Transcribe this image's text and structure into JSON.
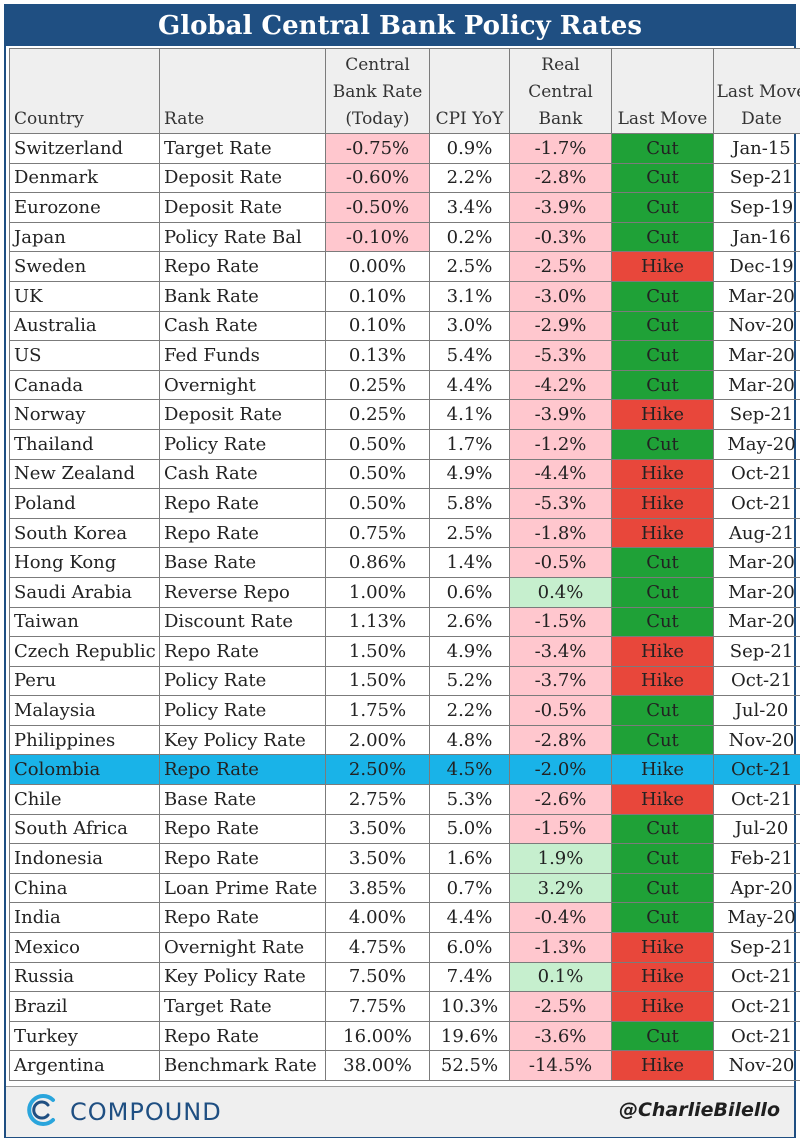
{
  "title": "Global Central Bank Policy Rates",
  "colors": {
    "header_blue": "#1f4f82",
    "negative_fill": "#ffc7ce",
    "positive_fill": "#c6efce",
    "cut_green": "#1fa137",
    "hike_red": "#e8473b",
    "highlight_blue": "#19b3e8"
  },
  "chart_data": {
    "type": "table",
    "columns": [
      "Country",
      "Rate",
      "Central Bank Rate (Today)",
      "CPI YoY",
      "Real Central Bank",
      "Last Move",
      "Last Move Date"
    ],
    "highlighted_row": "Colombia",
    "rows": [
      {
        "country": "Switzerland",
        "rate": "Target Rate",
        "cb_rate": "-0.75%",
        "cpi": "0.9%",
        "real": "-1.7%",
        "move": "Cut",
        "date": "Jan-15"
      },
      {
        "country": "Denmark",
        "rate": "Deposit Rate",
        "cb_rate": "-0.60%",
        "cpi": "2.2%",
        "real": "-2.8%",
        "move": "Cut",
        "date": "Sep-21"
      },
      {
        "country": "Eurozone",
        "rate": "Deposit Rate",
        "cb_rate": "-0.50%",
        "cpi": "3.4%",
        "real": "-3.9%",
        "move": "Cut",
        "date": "Sep-19"
      },
      {
        "country": "Japan",
        "rate": "Policy Rate Bal",
        "cb_rate": "-0.10%",
        "cpi": "0.2%",
        "real": "-0.3%",
        "move": "Cut",
        "date": "Jan-16"
      },
      {
        "country": "Sweden",
        "rate": "Repo Rate",
        "cb_rate": "0.00%",
        "cpi": "2.5%",
        "real": "-2.5%",
        "move": "Hike",
        "date": "Dec-19"
      },
      {
        "country": "UK",
        "rate": "Bank Rate",
        "cb_rate": "0.10%",
        "cpi": "3.1%",
        "real": "-3.0%",
        "move": "Cut",
        "date": "Mar-20"
      },
      {
        "country": "Australia",
        "rate": "Cash Rate",
        "cb_rate": "0.10%",
        "cpi": "3.0%",
        "real": "-2.9%",
        "move": "Cut",
        "date": "Nov-20"
      },
      {
        "country": "US",
        "rate": "Fed Funds",
        "cb_rate": "0.13%",
        "cpi": "5.4%",
        "real": "-5.3%",
        "move": "Cut",
        "date": "Mar-20"
      },
      {
        "country": "Canada",
        "rate": "Overnight",
        "cb_rate": "0.25%",
        "cpi": "4.4%",
        "real": "-4.2%",
        "move": "Cut",
        "date": "Mar-20"
      },
      {
        "country": "Norway",
        "rate": "Deposit Rate",
        "cb_rate": "0.25%",
        "cpi": "4.1%",
        "real": "-3.9%",
        "move": "Hike",
        "date": "Sep-21"
      },
      {
        "country": "Thailand",
        "rate": "Policy Rate",
        "cb_rate": "0.50%",
        "cpi": "1.7%",
        "real": "-1.2%",
        "move": "Cut",
        "date": "May-20"
      },
      {
        "country": "New Zealand",
        "rate": "Cash Rate",
        "cb_rate": "0.50%",
        "cpi": "4.9%",
        "real": "-4.4%",
        "move": "Hike",
        "date": "Oct-21"
      },
      {
        "country": "Poland",
        "rate": "Repo Rate",
        "cb_rate": "0.50%",
        "cpi": "5.8%",
        "real": "-5.3%",
        "move": "Hike",
        "date": "Oct-21"
      },
      {
        "country": "South Korea",
        "rate": "Repo Rate",
        "cb_rate": "0.75%",
        "cpi": "2.5%",
        "real": "-1.8%",
        "move": "Hike",
        "date": "Aug-21"
      },
      {
        "country": "Hong Kong",
        "rate": "Base Rate",
        "cb_rate": "0.86%",
        "cpi": "1.4%",
        "real": "-0.5%",
        "move": "Cut",
        "date": "Mar-20"
      },
      {
        "country": "Saudi Arabia",
        "rate": "Reverse Repo",
        "cb_rate": "1.00%",
        "cpi": "0.6%",
        "real": "0.4%",
        "move": "Cut",
        "date": "Mar-20"
      },
      {
        "country": "Taiwan",
        "rate": "Discount Rate",
        "cb_rate": "1.13%",
        "cpi": "2.6%",
        "real": "-1.5%",
        "move": "Cut",
        "date": "Mar-20"
      },
      {
        "country": "Czech Republic",
        "rate": "Repo Rate",
        "cb_rate": "1.50%",
        "cpi": "4.9%",
        "real": "-3.4%",
        "move": "Hike",
        "date": "Sep-21"
      },
      {
        "country": "Peru",
        "rate": "Policy Rate",
        "cb_rate": "1.50%",
        "cpi": "5.2%",
        "real": "-3.7%",
        "move": "Hike",
        "date": "Oct-21"
      },
      {
        "country": "Malaysia",
        "rate": "Policy Rate",
        "cb_rate": "1.75%",
        "cpi": "2.2%",
        "real": "-0.5%",
        "move": "Cut",
        "date": "Jul-20"
      },
      {
        "country": "Philippines",
        "rate": "Key Policy Rate",
        "cb_rate": "2.00%",
        "cpi": "4.8%",
        "real": "-2.8%",
        "move": "Cut",
        "date": "Nov-20"
      },
      {
        "country": "Colombia",
        "rate": "Repo Rate",
        "cb_rate": "2.50%",
        "cpi": "4.5%",
        "real": "-2.0%",
        "move": "Hike",
        "date": "Oct-21"
      },
      {
        "country": "Chile",
        "rate": "Base Rate",
        "cb_rate": "2.75%",
        "cpi": "5.3%",
        "real": "-2.6%",
        "move": "Hike",
        "date": "Oct-21"
      },
      {
        "country": "South Africa",
        "rate": "Repo Rate",
        "cb_rate": "3.50%",
        "cpi": "5.0%",
        "real": "-1.5%",
        "move": "Cut",
        "date": "Jul-20"
      },
      {
        "country": "Indonesia",
        "rate": "Repo Rate",
        "cb_rate": "3.50%",
        "cpi": "1.6%",
        "real": "1.9%",
        "move": "Cut",
        "date": "Feb-21"
      },
      {
        "country": "China",
        "rate": "Loan Prime Rate",
        "cb_rate": "3.85%",
        "cpi": "0.7%",
        "real": "3.2%",
        "move": "Cut",
        "date": "Apr-20"
      },
      {
        "country": "India",
        "rate": "Repo Rate",
        "cb_rate": "4.00%",
        "cpi": "4.4%",
        "real": "-0.4%",
        "move": "Cut",
        "date": "May-20"
      },
      {
        "country": "Mexico",
        "rate": "Overnight Rate",
        "cb_rate": "4.75%",
        "cpi": "6.0%",
        "real": "-1.3%",
        "move": "Hike",
        "date": "Sep-21"
      },
      {
        "country": "Russia",
        "rate": "Key Policy Rate",
        "cb_rate": "7.50%",
        "cpi": "7.4%",
        "real": "0.1%",
        "move": "Hike",
        "date": "Oct-21"
      },
      {
        "country": "Brazil",
        "rate": "Target Rate",
        "cb_rate": "7.75%",
        "cpi": "10.3%",
        "real": "-2.5%",
        "move": "Hike",
        "date": "Oct-21"
      },
      {
        "country": "Turkey",
        "rate": "Repo Rate",
        "cb_rate": "16.00%",
        "cpi": "19.6%",
        "real": "-3.6%",
        "move": "Cut",
        "date": "Oct-21"
      },
      {
        "country": "Argentina",
        "rate": "Benchmark Rate",
        "cb_rate": "38.00%",
        "cpi": "52.5%",
        "real": "-14.5%",
        "move": "Hike",
        "date": "Nov-20"
      }
    ]
  },
  "footer": {
    "logo_icon": "compound-c-icon",
    "logo_text": "COMPOUND",
    "handle": "@CharlieBilello"
  }
}
